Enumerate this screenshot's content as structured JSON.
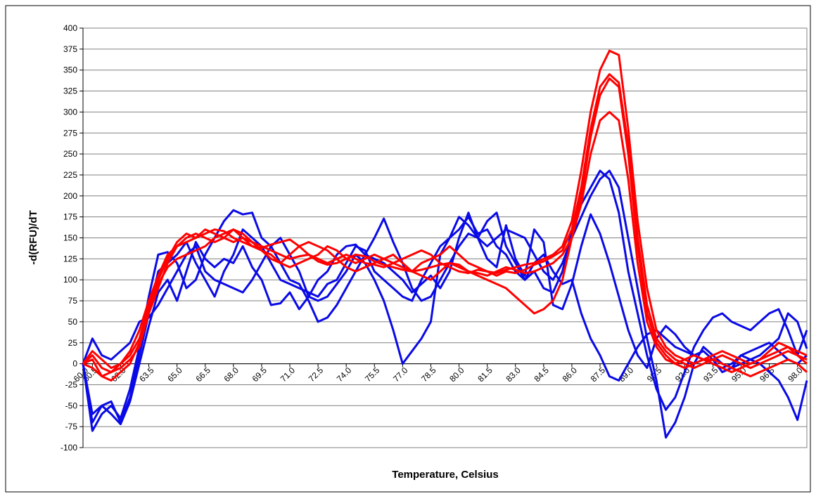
{
  "chart_data": {
    "type": "line",
    "x_label": "Temperature, Celsius",
    "y_label": "-d(RFU)/dT",
    "categories": [
      "60.0",
      "60.5",
      null,
      null,
      "62.0",
      null,
      null,
      "63.5",
      null,
      null,
      "65.0",
      null,
      null,
      "66.5",
      null,
      null,
      "68.0",
      null,
      null,
      "69.5",
      null,
      null,
      "71.0",
      null,
      null,
      "72.5",
      null,
      null,
      "74.0",
      null,
      null,
      "75.5",
      null,
      null,
      "77.0",
      null,
      null,
      "78.5",
      null,
      null,
      "80.0",
      null,
      null,
      "81.5",
      null,
      null,
      "83.0",
      null,
      null,
      "84.5",
      null,
      null,
      "86.0",
      null,
      null,
      "87.5",
      null,
      null,
      "89.0",
      null,
      null,
      "90.5",
      null,
      null,
      "92.0",
      null,
      null,
      "93.5",
      null,
      null,
      "95.0",
      null,
      null,
      "96.5",
      null,
      null,
      "98.0",
      null
    ],
    "ylim": [
      -100,
      400
    ],
    "yticks": [
      -100,
      -75,
      -50,
      -25,
      0,
      25,
      50,
      75,
      100,
      125,
      150,
      175,
      200,
      225,
      250,
      275,
      300,
      325,
      350,
      375,
      400
    ],
    "grid": true,
    "series": [
      {
        "color": "#0a0ae6",
        "values": [
          0,
          -80,
          -60,
          -50,
          -65,
          -30,
          20,
          80,
          130,
          133,
          120,
          90,
          100,
          130,
          150,
          170,
          183,
          178,
          180,
          150,
          140,
          120,
          100,
          95,
          75,
          50,
          55,
          70,
          90,
          110,
          130,
          150,
          173,
          145,
          120,
          90,
          75,
          80,
          100,
          120,
          140,
          155,
          150,
          170,
          180,
          140,
          120,
          100,
          110,
          90,
          85,
          110,
          160,
          190,
          210,
          230,
          220,
          180,
          110,
          60,
          10,
          -30,
          -55,
          -40,
          -10,
          20,
          40,
          55,
          60,
          50,
          45,
          40,
          50,
          60,
          65,
          40,
          10,
          40
        ]
      },
      {
        "color": "#0a0ae6",
        "values": [
          0,
          30,
          10,
          5,
          15,
          25,
          50,
          55,
          70,
          90,
          110,
          130,
          140,
          110,
          100,
          95,
          90,
          85,
          100,
          120,
          140,
          150,
          130,
          110,
          80,
          75,
          80,
          95,
          110,
          130,
          120,
          100,
          75,
          40,
          0,
          15,
          30,
          50,
          130,
          150,
          160,
          175,
          155,
          160,
          140,
          130,
          110,
          100,
          120,
          130,
          110,
          95,
          100,
          60,
          30,
          10,
          -15,
          -20,
          0,
          20,
          35,
          40,
          30,
          20,
          15,
          10,
          5,
          0,
          -5,
          0,
          10,
          15,
          20,
          25,
          15,
          5,
          0,
          10
        ]
      },
      {
        "color": "#0a0ae6",
        "values": [
          0,
          -60,
          -50,
          -45,
          -70,
          -40,
          10,
          60,
          110,
          120,
          130,
          145,
          120,
          100,
          80,
          110,
          130,
          160,
          150,
          140,
          120,
          100,
          95,
          90,
          85,
          80,
          95,
          100,
          120,
          140,
          135,
          110,
          100,
          90,
          80,
          75,
          100,
          120,
          140,
          150,
          175,
          165,
          150,
          140,
          150,
          160,
          155,
          150,
          130,
          110,
          100,
          120,
          150,
          175,
          200,
          220,
          230,
          210,
          150,
          90,
          30,
          -20,
          -88,
          -70,
          -40,
          0,
          20,
          10,
          0,
          -5,
          10,
          5,
          0,
          -10,
          -20,
          -40,
          -67,
          -20
        ]
      },
      {
        "color": "#0a0ae6",
        "values": [
          0,
          -70,
          -50,
          -60,
          -72,
          -45,
          0,
          45,
          85,
          100,
          75,
          110,
          145,
          125,
          115,
          125,
          120,
          140,
          115,
          100,
          70,
          72,
          85,
          65,
          80,
          100,
          110,
          130,
          140,
          142,
          130,
          125,
          120,
          110,
          100,
          85,
          95,
          105,
          90,
          110,
          150,
          180,
          150,
          125,
          115,
          165,
          125,
          105,
          160,
          145,
          70,
          65,
          95,
          140,
          178,
          155,
          120,
          80,
          40,
          10,
          -5,
          30,
          45,
          35,
          20,
          10,
          15,
          5,
          -10,
          -5,
          0,
          5,
          10,
          20,
          30,
          60,
          50,
          18
        ]
      },
      {
        "color": "#ff0000",
        "values": [
          0,
          10,
          -5,
          -10,
          -5,
          5,
          20,
          60,
          90,
          120,
          140,
          150,
          155,
          150,
          145,
          150,
          160,
          155,
          145,
          140,
          135,
          130,
          125,
          128,
          130,
          125,
          120,
          125,
          130,
          125,
          120,
          118,
          115,
          120,
          125,
          130,
          135,
          130,
          120,
          115,
          110,
          108,
          112,
          110,
          108,
          112,
          115,
          118,
          120,
          125,
          130,
          140,
          170,
          230,
          300,
          350,
          373,
          368,
          280,
          170,
          90,
          40,
          20,
          10,
          5,
          0,
          5,
          10,
          15,
          10,
          5,
          0,
          5,
          10,
          15,
          20,
          15,
          10
        ]
      },
      {
        "color": "#ff0000",
        "values": [
          0,
          15,
          5,
          -5,
          0,
          10,
          30,
          70,
          100,
          125,
          145,
          155,
          150,
          160,
          155,
          150,
          145,
          150,
          140,
          135,
          130,
          120,
          115,
          120,
          125,
          130,
          140,
          135,
          125,
          120,
          125,
          130,
          125,
          120,
          115,
          110,
          120,
          125,
          130,
          140,
          130,
          120,
          115,
          110,
          105,
          110,
          108,
          112,
          118,
          122,
          128,
          135,
          160,
          210,
          280,
          330,
          345,
          335,
          260,
          150,
          70,
          30,
          15,
          5,
          0,
          -5,
          0,
          5,
          10,
          5,
          0,
          -5,
          0,
          5,
          10,
          15,
          10,
          5
        ]
      },
      {
        "color": "#ff0000",
        "values": [
          0,
          5,
          -15,
          -20,
          -10,
          0,
          25,
          65,
          95,
          115,
          125,
          130,
          135,
          140,
          150,
          155,
          160,
          150,
          145,
          135,
          125,
          120,
          130,
          140,
          145,
          140,
          135,
          125,
          115,
          110,
          115,
          120,
          125,
          130,
          120,
          110,
          105,
          100,
          110,
          120,
          118,
          110,
          105,
          100,
          95,
          90,
          80,
          70,
          60,
          65,
          75,
          100,
          150,
          200,
          270,
          320,
          340,
          330,
          250,
          140,
          60,
          25,
          10,
          0,
          5,
          10,
          5,
          0,
          -5,
          -10,
          -5,
          0,
          5,
          15,
          25,
          20,
          10,
          0
        ]
      },
      {
        "color": "#ff0000",
        "values": [
          0,
          -5,
          -15,
          -10,
          0,
          15,
          40,
          75,
          105,
          130,
          140,
          145,
          150,
          155,
          160,
          158,
          150,
          145,
          140,
          138,
          142,
          145,
          148,
          140,
          130,
          122,
          118,
          120,
          125,
          130,
          128,
          122,
          118,
          115,
          112,
          110,
          112,
          115,
          118,
          120,
          115,
          110,
          108,
          105,
          110,
          115,
          112,
          108,
          110,
          115,
          120,
          130,
          150,
          190,
          250,
          290,
          300,
          290,
          220,
          120,
          50,
          20,
          5,
          0,
          -5,
          0,
          5,
          5,
          0,
          -5,
          -10,
          -15,
          -10,
          -5,
          0,
          5,
          0,
          -10
        ]
      }
    ]
  }
}
